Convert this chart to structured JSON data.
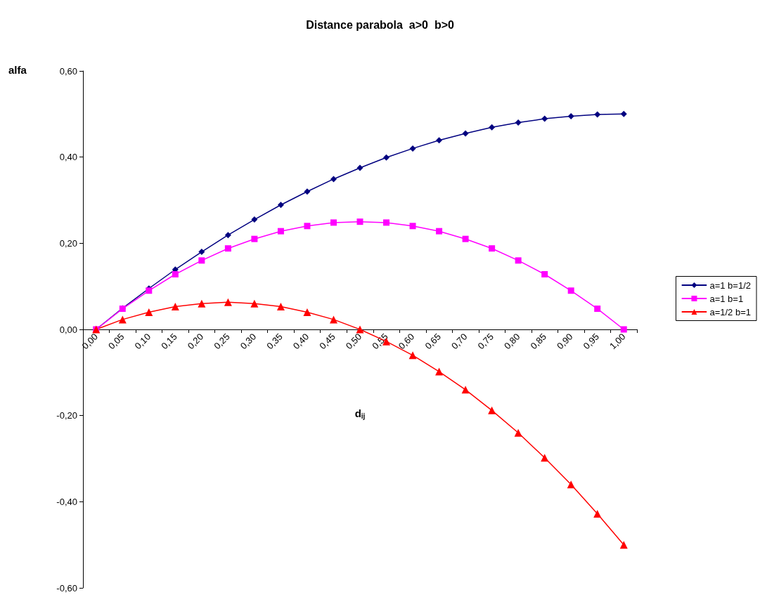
{
  "chart_data": {
    "type": "line",
    "title": "Distance parabola  a>0  b>0",
    "xlabel": "d$_{ij}$",
    "ylabel": "alfa",
    "categories": [
      "0,00",
      "0,05",
      "0,10",
      "0,15",
      "0,20",
      "0,25",
      "0,30",
      "0,35",
      "0,40",
      "0,45",
      "0,50",
      "0,55",
      "0,60",
      "0,65",
      "0,70",
      "0,75",
      "0,80",
      "0,85",
      "0,90",
      "0,95",
      "1,00"
    ],
    "series": [
      {
        "name": "a=1 b=1/2",
        "color": "#000080",
        "marker": "diamond",
        "values": [
          0,
          0.049,
          0.095,
          0.139,
          0.18,
          0.219,
          0.255,
          0.289,
          0.32,
          0.349,
          0.375,
          0.399,
          0.42,
          0.439,
          0.455,
          0.469,
          0.48,
          0.489,
          0.495,
          0.499,
          0.5
        ]
      },
      {
        "name": "a=1 b=1",
        "color": "#ff00ff",
        "marker": "square",
        "values": [
          0,
          0.048,
          0.09,
          0.128,
          0.16,
          0.188,
          0.21,
          0.228,
          0.24,
          0.248,
          0.25,
          0.248,
          0.24,
          0.228,
          0.21,
          0.188,
          0.16,
          0.128,
          0.09,
          0.048,
          0
        ]
      },
      {
        "name": "a=1/2 b=1",
        "color": "#ff0000",
        "marker": "triangle",
        "values": [
          0,
          0.023,
          0.04,
          0.053,
          0.06,
          0.063,
          0.06,
          0.053,
          0.04,
          0.023,
          0,
          -0.028,
          -0.06,
          -0.098,
          -0.14,
          -0.188,
          -0.24,
          -0.298,
          -0.36,
          -0.428,
          -0.5
        ]
      }
    ],
    "ylim": [
      -0.6,
      0.6
    ],
    "yticks": [
      {
        "value": -0.6,
        "label": "-0,60"
      },
      {
        "value": -0.4,
        "label": "-0,40"
      },
      {
        "value": -0.2,
        "label": "-0,20"
      },
      {
        "value": 0,
        "label": "0,00"
      },
      {
        "value": 0.2,
        "label": "0,20"
      },
      {
        "value": 0.4,
        "label": "0,40"
      },
      {
        "value": 0.6,
        "label": "0,60"
      }
    ],
    "grid": false,
    "legend": "right",
    "line_style": "solid"
  }
}
